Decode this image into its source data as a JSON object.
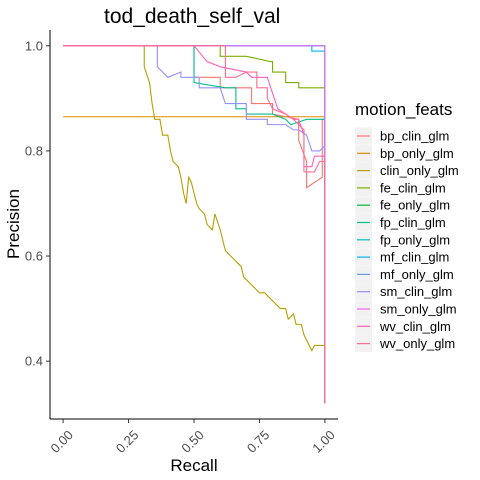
{
  "chart_data": {
    "type": "line",
    "title": "tod_death_self_val",
    "xlabel": "Recall",
    "ylabel": "Precision",
    "xlim": [
      -0.05,
      1.05
    ],
    "ylim": [
      0.29,
      1.03
    ],
    "x_ticks": [
      "0.00",
      "0.25",
      "0.50",
      "0.75",
      "1.00"
    ],
    "y_ticks": [
      "0.4",
      "0.6",
      "0.8",
      "1.0"
    ],
    "legend": {
      "title": "motion_feats",
      "position": "right"
    },
    "series": [
      {
        "name": "bp_clin_glm",
        "color": "#F8766D",
        "points": [
          [
            0,
            1.0
          ],
          [
            0.5,
            1.0
          ],
          [
            0.5,
            0.94
          ],
          [
            0.6,
            0.94
          ],
          [
            0.6,
            0.92
          ],
          [
            0.72,
            0.92
          ],
          [
            0.72,
            0.89
          ],
          [
            0.8,
            0.89
          ],
          [
            0.8,
            0.87
          ],
          [
            0.9,
            0.86
          ],
          [
            0.9,
            0.82
          ],
          [
            0.93,
            0.78
          ],
          [
            0.93,
            0.73
          ],
          [
            0.99,
            0.75
          ],
          [
            0.99,
            0.86
          ],
          [
            1.0,
            0.86
          ],
          [
            1.0,
            0.32
          ]
        ]
      },
      {
        "name": "bp_only_glm",
        "color": "#DE8C00",
        "points": [
          [
            0,
            0.865
          ],
          [
            1.0,
            0.865
          ],
          [
            1.0,
            0.32
          ]
        ]
      },
      {
        "name": "clin_only_glm",
        "color": "#B79F00",
        "points": [
          [
            0,
            1.0
          ],
          [
            0.31,
            1.0
          ],
          [
            0.31,
            0.96
          ],
          [
            0.33,
            0.93
          ],
          [
            0.34,
            0.89
          ],
          [
            0.35,
            0.86
          ],
          [
            0.37,
            0.86
          ],
          [
            0.38,
            0.83
          ],
          [
            0.4,
            0.83
          ],
          [
            0.41,
            0.8
          ],
          [
            0.42,
            0.78
          ],
          [
            0.44,
            0.77
          ],
          [
            0.45,
            0.75
          ],
          [
            0.46,
            0.72
          ],
          [
            0.47,
            0.7
          ],
          [
            0.48,
            0.75
          ],
          [
            0.49,
            0.74
          ],
          [
            0.5,
            0.72
          ],
          [
            0.51,
            0.7
          ],
          [
            0.52,
            0.69
          ],
          [
            0.54,
            0.68
          ],
          [
            0.55,
            0.66
          ],
          [
            0.57,
            0.65
          ],
          [
            0.58,
            0.68
          ],
          [
            0.6,
            0.65
          ],
          [
            0.61,
            0.63
          ],
          [
            0.62,
            0.61
          ],
          [
            0.64,
            0.6
          ],
          [
            0.66,
            0.59
          ],
          [
            0.68,
            0.58
          ],
          [
            0.69,
            0.56
          ],
          [
            0.71,
            0.55
          ],
          [
            0.73,
            0.54
          ],
          [
            0.75,
            0.53
          ],
          [
            0.77,
            0.53
          ],
          [
            0.79,
            0.52
          ],
          [
            0.81,
            0.51
          ],
          [
            0.83,
            0.5
          ],
          [
            0.85,
            0.5
          ],
          [
            0.86,
            0.48
          ],
          [
            0.88,
            0.49
          ],
          [
            0.89,
            0.47
          ],
          [
            0.91,
            0.47
          ],
          [
            0.92,
            0.45
          ],
          [
            0.93,
            0.44
          ],
          [
            0.94,
            0.43
          ],
          [
            0.95,
            0.42
          ],
          [
            0.96,
            0.43
          ],
          [
            1.0,
            0.43
          ],
          [
            1.0,
            0.32
          ]
        ]
      },
      {
        "name": "fe_clin_glm",
        "color": "#7CAE00",
        "points": [
          [
            0,
            1.0
          ],
          [
            0.6,
            1.0
          ],
          [
            0.6,
            0.98
          ],
          [
            0.7,
            0.98
          ],
          [
            0.79,
            0.97
          ],
          [
            0.8,
            0.97
          ],
          [
            0.8,
            0.95
          ],
          [
            0.85,
            0.95
          ],
          [
            0.85,
            0.93
          ],
          [
            0.9,
            0.93
          ],
          [
            0.9,
            0.92
          ],
          [
            1.0,
            0.92
          ],
          [
            1.0,
            0.32
          ]
        ]
      },
      {
        "name": "fe_only_glm",
        "color": "#00BA38",
        "points": [
          [
            0,
            1.0
          ],
          [
            1.0,
            1.0
          ],
          [
            1.0,
            0.32
          ]
        ]
      },
      {
        "name": "fp_clin_glm",
        "color": "#00C08B",
        "points": [
          [
            0,
            1.0
          ],
          [
            0.5,
            1.0
          ],
          [
            0.5,
            0.93
          ],
          [
            0.62,
            0.92
          ],
          [
            0.66,
            0.92
          ],
          [
            0.66,
            0.88
          ],
          [
            0.7,
            0.88
          ],
          [
            0.7,
            0.87
          ],
          [
            0.8,
            0.87
          ],
          [
            0.85,
            0.86
          ],
          [
            0.87,
            0.85
          ],
          [
            0.93,
            0.86
          ],
          [
            1.0,
            0.86
          ],
          [
            1.0,
            0.32
          ]
        ]
      },
      {
        "name": "fp_only_glm",
        "color": "#00BFC4",
        "points": [
          [
            0,
            1.0
          ],
          [
            1.0,
            1.0
          ],
          [
            1.0,
            0.32
          ]
        ]
      },
      {
        "name": "mf_clin_glm",
        "color": "#00B4F0",
        "points": [
          [
            0,
            1.0
          ],
          [
            0.95,
            1.0
          ],
          [
            0.95,
            0.99
          ],
          [
            1.0,
            0.99
          ],
          [
            1.0,
            0.32
          ]
        ]
      },
      {
        "name": "mf_only_glm",
        "color": "#619CFF",
        "points": [
          [
            0,
            1.0
          ],
          [
            1.0,
            1.0
          ],
          [
            1.0,
            0.32
          ]
        ]
      },
      {
        "name": "sm_clin_glm",
        "color": "#9590FF",
        "points": [
          [
            0,
            1.0
          ],
          [
            0.36,
            1.0
          ],
          [
            0.36,
            0.96
          ],
          [
            0.4,
            0.94
          ],
          [
            0.45,
            0.95
          ],
          [
            0.45,
            0.94
          ],
          [
            0.52,
            0.94
          ],
          [
            0.52,
            0.92
          ],
          [
            0.6,
            0.92
          ],
          [
            0.62,
            0.89
          ],
          [
            0.7,
            0.89
          ],
          [
            0.7,
            0.86
          ],
          [
            0.78,
            0.86
          ],
          [
            0.78,
            0.85
          ],
          [
            0.85,
            0.85
          ],
          [
            0.88,
            0.84
          ],
          [
            0.9,
            0.84
          ],
          [
            0.93,
            0.83
          ],
          [
            0.95,
            0.8
          ],
          [
            0.98,
            0.8
          ],
          [
            1.0,
            0.81
          ],
          [
            1.0,
            0.32
          ]
        ]
      },
      {
        "name": "sm_only_glm",
        "color": "#E76BF3",
        "points": [
          [
            0,
            1.0
          ],
          [
            1.0,
            1.0
          ],
          [
            1.0,
            0.32
          ]
        ]
      },
      {
        "name": "wv_clin_glm",
        "color": "#FF62BC",
        "points": [
          [
            0,
            1.0
          ],
          [
            0.5,
            1.0
          ],
          [
            0.55,
            0.97
          ],
          [
            0.6,
            0.96
          ],
          [
            0.7,
            0.95
          ],
          [
            0.72,
            0.94
          ],
          [
            0.78,
            0.94
          ],
          [
            0.8,
            0.91
          ],
          [
            0.82,
            0.88
          ],
          [
            0.85,
            0.87
          ],
          [
            0.88,
            0.86
          ],
          [
            0.9,
            0.86
          ],
          [
            0.92,
            0.83
          ],
          [
            0.92,
            0.77
          ],
          [
            0.95,
            0.77
          ],
          [
            0.96,
            0.79
          ],
          [
            1.0,
            0.79
          ],
          [
            1.0,
            0.32
          ]
        ]
      },
      {
        "name": "wv_only_glm",
        "color": "#FF6C91",
        "points": [
          [
            0,
            1.0
          ],
          [
            0.62,
            1.0
          ],
          [
            0.62,
            0.94
          ],
          [
            0.66,
            0.94
          ],
          [
            0.7,
            0.95
          ],
          [
            0.74,
            0.95
          ],
          [
            0.74,
            0.92
          ],
          [
            0.78,
            0.92
          ],
          [
            0.78,
            0.9
          ],
          [
            0.8,
            0.88
          ],
          [
            0.85,
            0.87
          ],
          [
            0.88,
            0.86
          ],
          [
            0.92,
            0.84
          ],
          [
            0.92,
            0.76
          ],
          [
            0.96,
            0.76
          ],
          [
            0.98,
            0.78
          ],
          [
            1.0,
            0.78
          ],
          [
            1.0,
            0.32
          ]
        ]
      }
    ]
  }
}
